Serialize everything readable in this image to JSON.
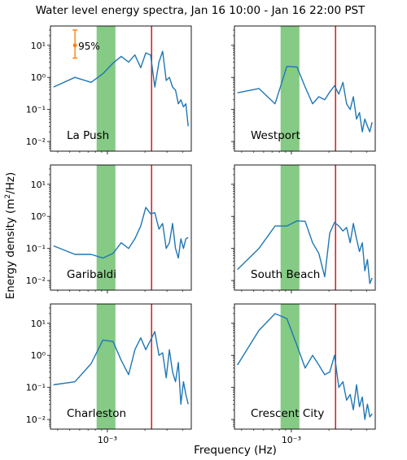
{
  "figure": {
    "title": "Water level energy spectra, Jan 16 10:00 - Jan 16 22:00 PST",
    "xlabel": "Frequency (Hz)",
    "ylabel_main": "Energy density (m",
    "ylabel_sup": "2",
    "ylabel_end": "/Hz)",
    "errorbar_label": "95%"
  },
  "colors": {
    "line": "#1f77b4",
    "band": "#5cb85c",
    "vline": "#d62728",
    "errorbar": "#ff7f0e"
  },
  "axes_common": {
    "xscale": "log",
    "yscale": "log",
    "xlim": [
      0.00035,
      0.0047
    ],
    "ylim": [
      0.005,
      40
    ],
    "band_x": [
      0.00082,
      0.00116
    ],
    "vline_x": 0.00226,
    "yticks": [
      0.01,
      0.1,
      1,
      10
    ],
    "ytick_labels": [
      "10⁻²",
      "10⁻¹",
      "10⁰",
      "10¹"
    ],
    "xticks": [
      0.001
    ],
    "xtick_labels": [
      "10⁻³"
    ]
  },
  "chart_data": [
    {
      "type": "line",
      "title": "La Push",
      "x": [
        0.00037,
        0.00055,
        0.00074,
        0.00092,
        0.00111,
        0.00129,
        0.00148,
        0.00166,
        0.00185,
        0.00203,
        0.00222,
        0.0024,
        0.00259,
        0.00277,
        0.00296,
        0.00314,
        0.00333,
        0.00351,
        0.0037,
        0.00388,
        0.00407,
        0.00425,
        0.00444
      ],
      "y": [
        0.5,
        1.0,
        0.7,
        1.3,
        2.8,
        4.5,
        3.0,
        5.0,
        2.0,
        5.8,
        5.0,
        0.5,
        3.0,
        6.5,
        0.8,
        1.0,
        0.5,
        0.4,
        0.15,
        0.2,
        0.12,
        0.15,
        0.03
      ]
    },
    {
      "type": "line",
      "title": "Westport",
      "x": [
        0.00037,
        0.00055,
        0.00074,
        0.00092,
        0.00111,
        0.00129,
        0.00148,
        0.00166,
        0.00185,
        0.00203,
        0.00222,
        0.0024,
        0.00259,
        0.00277,
        0.00296,
        0.00314,
        0.00333,
        0.00351,
        0.0037,
        0.00388,
        0.00407,
        0.00425,
        0.00444
      ],
      "y": [
        0.33,
        0.45,
        0.15,
        2.2,
        2.1,
        0.5,
        0.15,
        0.25,
        0.2,
        0.35,
        0.55,
        0.3,
        0.7,
        0.15,
        0.1,
        0.25,
        0.05,
        0.08,
        0.02,
        0.05,
        0.03,
        0.02,
        0.04
      ]
    },
    {
      "type": "line",
      "title": "Garibaldi",
      "x": [
        0.00037,
        0.00055,
        0.00074,
        0.00092,
        0.00111,
        0.00129,
        0.00148,
        0.00166,
        0.00185,
        0.00203,
        0.00222,
        0.0024,
        0.00259,
        0.00277,
        0.00296,
        0.00314,
        0.00333,
        0.00351,
        0.0037,
        0.00388,
        0.00407,
        0.00425,
        0.00444
      ],
      "y": [
        0.12,
        0.065,
        0.065,
        0.05,
        0.07,
        0.15,
        0.1,
        0.2,
        0.5,
        1.9,
        1.2,
        1.3,
        0.4,
        0.6,
        0.1,
        0.15,
        0.6,
        0.1,
        0.05,
        0.2,
        0.1,
        0.2,
        0.22
      ]
    },
    {
      "type": "line",
      "title": "South Beach",
      "x": [
        0.00037,
        0.00055,
        0.00074,
        0.00092,
        0.00111,
        0.00129,
        0.00148,
        0.00166,
        0.00185,
        0.00203,
        0.00222,
        0.0024,
        0.00259,
        0.00277,
        0.00296,
        0.00314,
        0.00333,
        0.00351,
        0.0037,
        0.00388,
        0.00407,
        0.00425,
        0.00444
      ],
      "y": [
        0.022,
        0.1,
        0.5,
        0.5,
        0.72,
        0.7,
        0.15,
        0.07,
        0.013,
        0.3,
        0.65,
        0.5,
        0.35,
        0.45,
        0.15,
        0.6,
        0.2,
        0.08,
        0.15,
        0.02,
        0.045,
        0.008,
        0.012
      ]
    },
    {
      "type": "line",
      "title": "Charleston",
      "x": [
        0.00037,
        0.00055,
        0.00074,
        0.00092,
        0.00111,
        0.00129,
        0.00148,
        0.00166,
        0.00185,
        0.00203,
        0.00222,
        0.0024,
        0.00259,
        0.00277,
        0.00296,
        0.00314,
        0.00333,
        0.00351,
        0.0037,
        0.00388,
        0.00407,
        0.00425,
        0.00444
      ],
      "y": [
        0.12,
        0.15,
        0.55,
        3.0,
        2.7,
        0.7,
        0.25,
        1.5,
        3.5,
        1.5,
        3.0,
        5.5,
        1.0,
        1.2,
        0.2,
        1.5,
        0.3,
        0.15,
        0.6,
        0.03,
        0.15,
        0.06,
        0.03
      ]
    },
    {
      "type": "line",
      "title": "Crescent City",
      "x": [
        0.00037,
        0.00055,
        0.00074,
        0.00092,
        0.00111,
        0.00129,
        0.00148,
        0.00166,
        0.00185,
        0.00203,
        0.00222,
        0.0024,
        0.00259,
        0.00277,
        0.00296,
        0.00314,
        0.00333,
        0.00351,
        0.0037,
        0.00388,
        0.00407,
        0.00425,
        0.00444
      ],
      "y": [
        0.5,
        6.0,
        20.0,
        14.0,
        2.0,
        0.4,
        1.0,
        0.5,
        0.25,
        0.3,
        1.0,
        0.1,
        0.15,
        0.04,
        0.06,
        0.02,
        0.12,
        0.025,
        0.05,
        0.01,
        0.03,
        0.012,
        0.015
      ]
    }
  ],
  "errorbar": {
    "x": 0.00055,
    "center": 10,
    "low": 4,
    "high": 30
  }
}
